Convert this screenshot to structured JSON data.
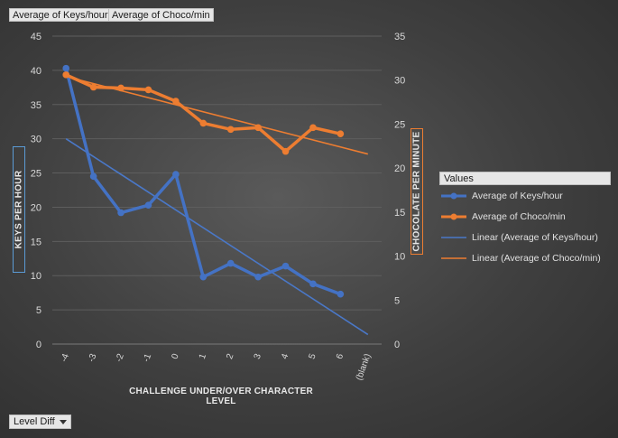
{
  "field_buttons": {
    "keys": "Average of Keys/hour",
    "choco": "Average of Choco/min",
    "level_diff": "Level Diff"
  },
  "colors": {
    "keys": "#4472c4",
    "choco": "#ed7d31",
    "keys_trend": "#4a78c8",
    "choco_trend": "#ed7d31"
  },
  "chart_data": {
    "type": "line",
    "categories": [
      "-4",
      "-3",
      "-2",
      "-1",
      "0",
      "1",
      "2",
      "3",
      "4",
      "5",
      "6",
      "(blank)"
    ],
    "xlabel": "CHALLENGE UNDER/OVER CHARACTER LEVEL",
    "ylabel": "KEYS PER HOUR",
    "y2label": "CHOCOLATE PER MINUTE",
    "ylim": [
      0,
      45
    ],
    "yticks": [
      "0",
      "5",
      "10",
      "15",
      "20",
      "25",
      "30",
      "35",
      "40",
      "45"
    ],
    "y2lim": [
      0,
      35
    ],
    "y2ticks": [
      "0",
      "5",
      "10",
      "15",
      "20",
      "25",
      "30",
      "35"
    ],
    "grid": true,
    "legend_title": "Values",
    "legend_position": "right",
    "series": [
      {
        "name": "Average of Keys/hour",
        "axis": "left",
        "values": [
          40.3,
          24.5,
          19.2,
          20.3,
          24.8,
          9.8,
          11.8,
          9.8,
          11.4,
          8.8,
          7.3,
          null
        ]
      },
      {
        "name": "Average of Choco/min",
        "axis": "right",
        "values": [
          30.6,
          29.2,
          29.1,
          28.9,
          27.6,
          25.1,
          24.4,
          24.6,
          21.9,
          24.6,
          23.9,
          null
        ]
      }
    ],
    "trendlines": [
      {
        "name": "Linear (Average of Keys/hour)",
        "axis": "left",
        "start": [
          -4,
          30.0
        ],
        "end": [
          "(blank)",
          1.4
        ]
      },
      {
        "name": "Linear (Average of Choco/min)",
        "axis": "right",
        "start": [
          -4,
          30.4
        ],
        "end": [
          "(blank)",
          21.6
        ]
      }
    ]
  }
}
